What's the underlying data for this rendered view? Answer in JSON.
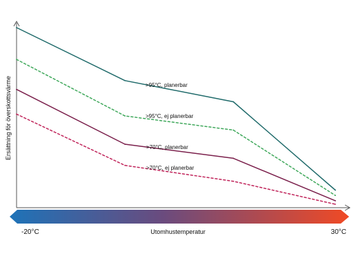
{
  "chart_data": {
    "type": "line",
    "ylabel": "Ersättning för överskottsvärme",
    "xlabel": "Utomhustemperatur",
    "x_range_labels": {
      "min": "-20°C",
      "max": "30°C"
    },
    "xlim": [
      -20,
      30
    ],
    "ylim": [
      0,
      100
    ],
    "grid": false,
    "legend": "none",
    "series": [
      {
        "name": ">95°C, planerbar",
        "style": "solid",
        "color": "#1f6a6a",
        "points": [
          {
            "x": -20,
            "y": 100
          },
          {
            "x": -3,
            "y": 70
          },
          {
            "x": 14,
            "y": 58
          },
          {
            "x": 30,
            "y": 8
          }
        ]
      },
      {
        "name": ">95°C, ej planerbar",
        "style": "dashed",
        "color": "#3fa85b",
        "points": [
          {
            "x": -20,
            "y": 82
          },
          {
            "x": -3,
            "y": 50
          },
          {
            "x": 14,
            "y": 42
          },
          {
            "x": 30,
            "y": 5
          }
        ]
      },
      {
        "name": ">70°C, planerbar",
        "style": "solid",
        "color": "#7a1f4b",
        "points": [
          {
            "x": -20,
            "y": 65
          },
          {
            "x": -3,
            "y": 34
          },
          {
            "x": 14,
            "y": 26
          },
          {
            "x": 30,
            "y": 2
          }
        ]
      },
      {
        "name": ">70°C, ej planerbar",
        "style": "dashed",
        "color": "#c0245a",
        "points": [
          {
            "x": -20,
            "y": 51
          },
          {
            "x": -3,
            "y": 22
          },
          {
            "x": 14,
            "y": 13
          },
          {
            "x": 30,
            "y": 0
          }
        ]
      }
    ],
    "gradient_bar": {
      "start_color": "#1e73b8",
      "mid_color": "#6a4b7e",
      "end_color": "#f04a25"
    },
    "axis_color": "#555555"
  }
}
